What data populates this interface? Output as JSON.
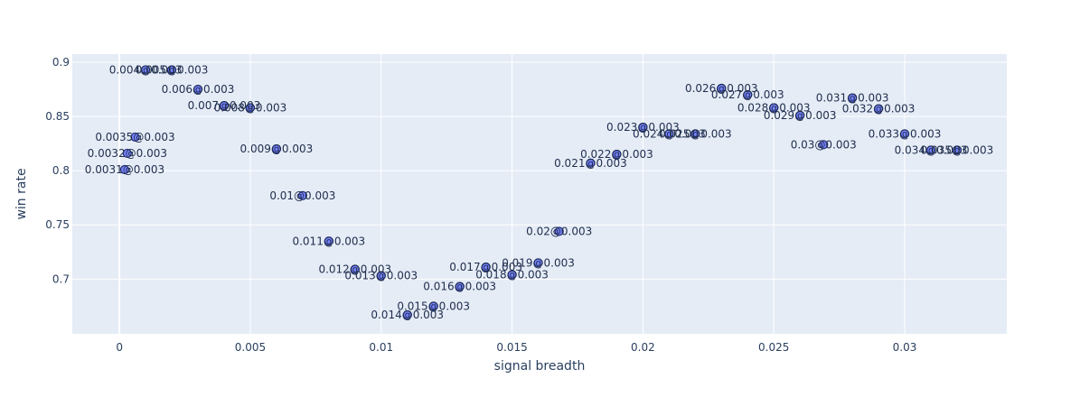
{
  "chart_data": {
    "type": "scatter",
    "xlabel": "signal breadth",
    "ylabel": "win rate",
    "xlim": [
      -0.0018,
      0.0339
    ],
    "ylim": [
      0.6495,
      0.9075
    ],
    "x_ticks": [
      0,
      0.005,
      0.01,
      0.015,
      0.02,
      0.025,
      0.03
    ],
    "x_tick_labels": [
      "0",
      "0.005",
      "0.01",
      "0.015",
      "0.02",
      "0.025",
      "0.03"
    ],
    "y_ticks": [
      0.7,
      0.75,
      0.8,
      0.85,
      0.9
    ],
    "y_tick_labels": [
      "0.7",
      "0.75",
      "0.8",
      "0.85",
      "0.9"
    ],
    "grid": true,
    "colors": {
      "plot_bg": "#e5ecf6",
      "marker": "#636efa",
      "text": "#2a3f5f"
    },
    "points": [
      {
        "x": 0.0002,
        "y": 0.801,
        "label": "0.0031@0.003"
      },
      {
        "x": 0.0003,
        "y": 0.816,
        "label": "0.0032@0.003"
      },
      {
        "x": 0.0006,
        "y": 0.831,
        "label": "0.0035@0.003"
      },
      {
        "x": 0.001,
        "y": 0.893,
        "label": "0.004@0.003"
      },
      {
        "x": 0.002,
        "y": 0.893,
        "label": "0.005@0.003"
      },
      {
        "x": 0.003,
        "y": 0.875,
        "label": "0.006@0.003"
      },
      {
        "x": 0.004,
        "y": 0.86,
        "label": "0.007@0.003"
      },
      {
        "x": 0.005,
        "y": 0.858,
        "label": "0.008@0.003"
      },
      {
        "x": 0.006,
        "y": 0.82,
        "label": "0.009@0.003"
      },
      {
        "x": 0.007,
        "y": 0.777,
        "label": "0.01@0.003"
      },
      {
        "x": 0.008,
        "y": 0.735,
        "label": "0.011@0.003"
      },
      {
        "x": 0.009,
        "y": 0.709,
        "label": "0.012@0.003"
      },
      {
        "x": 0.01,
        "y": 0.703,
        "label": "0.013@0.003"
      },
      {
        "x": 0.011,
        "y": 0.667,
        "label": "0.014@0.003"
      },
      {
        "x": 0.012,
        "y": 0.675,
        "label": "0.015@0.003"
      },
      {
        "x": 0.013,
        "y": 0.693,
        "label": "0.016@0.003"
      },
      {
        "x": 0.014,
        "y": 0.711,
        "label": "0.017@0.003"
      },
      {
        "x": 0.015,
        "y": 0.704,
        "label": "0.018@0.003"
      },
      {
        "x": 0.016,
        "y": 0.715,
        "label": "0.019@0.003"
      },
      {
        "x": 0.0168,
        "y": 0.744,
        "label": "0.02@0.003"
      },
      {
        "x": 0.018,
        "y": 0.807,
        "label": "0.021@0.003"
      },
      {
        "x": 0.019,
        "y": 0.815,
        "label": "0.022@0.003"
      },
      {
        "x": 0.02,
        "y": 0.84,
        "label": "0.023@0.003"
      },
      {
        "x": 0.021,
        "y": 0.834,
        "label": "0.024@0.003"
      },
      {
        "x": 0.022,
        "y": 0.834,
        "label": "0.025@0.003"
      },
      {
        "x": 0.023,
        "y": 0.876,
        "label": "0.026@0.003"
      },
      {
        "x": 0.024,
        "y": 0.87,
        "label": "0.027@0.003"
      },
      {
        "x": 0.025,
        "y": 0.858,
        "label": "0.028@0.003"
      },
      {
        "x": 0.026,
        "y": 0.851,
        "label": "0.029@0.003"
      },
      {
        "x": 0.0269,
        "y": 0.824,
        "label": "0.03@0.003"
      },
      {
        "x": 0.028,
        "y": 0.867,
        "label": "0.031@0.003"
      },
      {
        "x": 0.029,
        "y": 0.857,
        "label": "0.032@0.003"
      },
      {
        "x": 0.03,
        "y": 0.834,
        "label": "0.033@0.003"
      },
      {
        "x": 0.031,
        "y": 0.819,
        "label": "0.034@0.003"
      },
      {
        "x": 0.032,
        "y": 0.819,
        "label": "0.035@0.003"
      }
    ]
  }
}
